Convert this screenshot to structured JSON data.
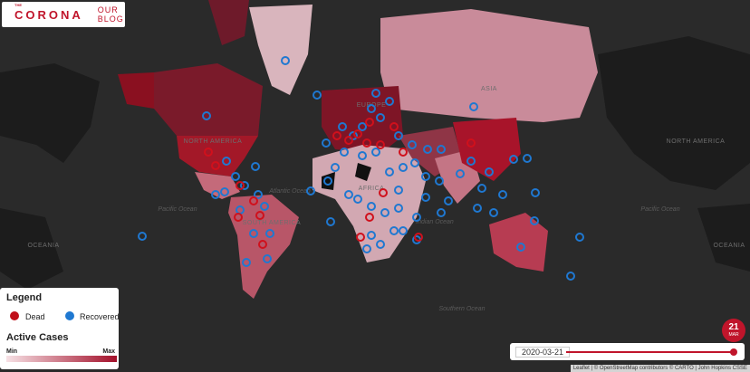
{
  "header": {
    "logo_small": "THE",
    "logo": "CORONA",
    "nav": "OUR BLOG"
  },
  "map_labels": [
    "NORTH AMERICA",
    "SOUTH AMERICA",
    "EUROPE",
    "ASIA",
    "AFRICA",
    "OCEANIA",
    "Atlantic Ocean",
    "Pacific Ocean",
    "Indian Ocean",
    "Southern Ocean"
  ],
  "legend": {
    "title": "Legend",
    "items": [
      "Dead",
      "Recovered"
    ],
    "scale_title": "Active Cases",
    "min": "Min",
    "max": "Max"
  },
  "timeline": {
    "date": "2020-03-21",
    "day": "21",
    "month": "MAR"
  },
  "attribution": "Leaflet | © OpenStreetMap contributors © CARTO | John Hopkins CSSE"
}
